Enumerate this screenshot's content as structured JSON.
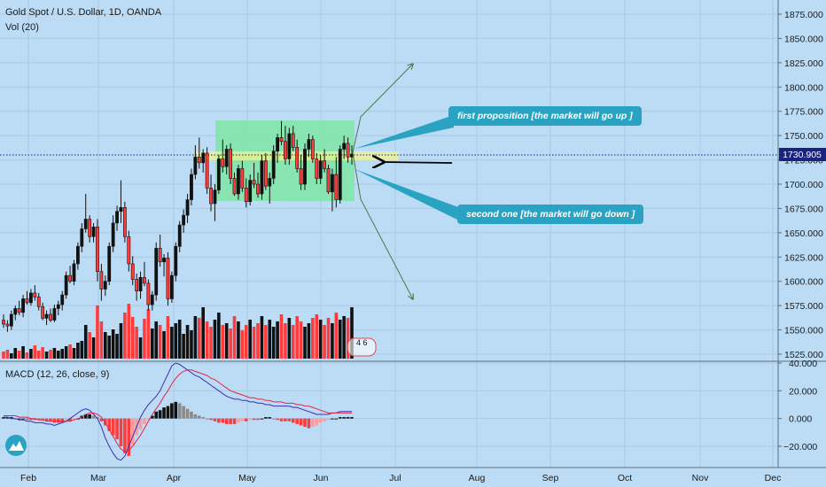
{
  "header": {
    "symbol_title": "Gold Spot / U.S. Dollar, 1D, OANDA",
    "volume_label": "Vol (20)",
    "macd_label": "MACD (12, 26, close, 9)",
    "logo_icon": "tradingview-logo-icon"
  },
  "price_axis": {
    "ticks": [
      "1875.000",
      "1850.000",
      "1825.000",
      "1800.000",
      "1775.000",
      "1750.000",
      "1725.000",
      "1700.000",
      "1675.000",
      "1650.000",
      "1625.000",
      "1600.000",
      "1575.000",
      "1550.000",
      "1525.000"
    ],
    "current_price": "1730.905",
    "current_price_color": "#1a237e"
  },
  "macd_axis": {
    "ticks": [
      "40.000",
      "20.000",
      "0.000",
      "−20.000"
    ]
  },
  "time_axis": {
    "labels": [
      "Feb",
      "Mar",
      "Apr",
      "May",
      "Jun",
      "Jul",
      "Aug",
      "Sep",
      "Oct",
      "Nov",
      "Dec"
    ]
  },
  "annotations": {
    "up_label": "first proposition [the market will go up ]",
    "down_label": "second one [the market will go down ]",
    "volume_overlay_value": "4 6",
    "callout_color": "#2aa3c3",
    "range_box_color": "#7fe6a6"
  },
  "chart_data": {
    "type": "candlestick",
    "ylim": [
      1520,
      1885
    ],
    "macd_ylim": [
      -32,
      42
    ],
    "up_color": "#111111",
    "down_color": "#ff3b3b",
    "candles": [
      [
        1560,
        1566,
        1552,
        1556
      ],
      [
        1556,
        1560,
        1548,
        1554
      ],
      [
        1554,
        1570,
        1550,
        1566
      ],
      [
        1566,
        1575,
        1560,
        1572
      ],
      [
        1572,
        1580,
        1565,
        1568
      ],
      [
        1568,
        1586,
        1563,
        1582
      ],
      [
        1582,
        1590,
        1576,
        1578
      ],
      [
        1578,
        1592,
        1575,
        1588
      ],
      [
        1588,
        1596,
        1580,
        1584
      ],
      [
        1584,
        1588,
        1570,
        1574
      ],
      [
        1574,
        1578,
        1560,
        1562
      ],
      [
        1562,
        1570,
        1555,
        1566
      ],
      [
        1566,
        1572,
        1558,
        1560
      ],
      [
        1560,
        1576,
        1558,
        1572
      ],
      [
        1572,
        1580,
        1565,
        1576
      ],
      [
        1576,
        1590,
        1570,
        1586
      ],
      [
        1586,
        1610,
        1582,
        1606
      ],
      [
        1606,
        1616,
        1598,
        1600
      ],
      [
        1600,
        1622,
        1596,
        1618
      ],
      [
        1618,
        1640,
        1612,
        1636
      ],
      [
        1636,
        1660,
        1630,
        1654
      ],
      [
        1654,
        1690,
        1650,
        1664
      ],
      [
        1664,
        1668,
        1640,
        1646
      ],
      [
        1646,
        1660,
        1640,
        1656
      ],
      [
        1656,
        1664,
        1600,
        1610
      ],
      [
        1610,
        1618,
        1580,
        1592
      ],
      [
        1592,
        1606,
        1585,
        1600
      ],
      [
        1600,
        1640,
        1596,
        1636
      ],
      [
        1636,
        1668,
        1630,
        1660
      ],
      [
        1660,
        1678,
        1652,
        1672
      ],
      [
        1672,
        1704,
        1660,
        1676
      ],
      [
        1676,
        1682,
        1640,
        1646
      ],
      [
        1646,
        1652,
        1610,
        1618
      ],
      [
        1618,
        1626,
        1596,
        1602
      ],
      [
        1602,
        1608,
        1580,
        1590
      ],
      [
        1590,
        1610,
        1582,
        1604
      ],
      [
        1604,
        1620,
        1595,
        1598
      ],
      [
        1598,
        1602,
        1570,
        1576
      ],
      [
        1576,
        1590,
        1570,
        1586
      ],
      [
        1586,
        1640,
        1580,
        1634
      ],
      [
        1634,
        1648,
        1615,
        1620
      ],
      [
        1620,
        1628,
        1605,
        1624
      ],
      [
        1624,
        1630,
        1575,
        1582
      ],
      [
        1582,
        1610,
        1578,
        1606
      ],
      [
        1606,
        1640,
        1600,
        1636
      ],
      [
        1636,
        1662,
        1630,
        1658
      ],
      [
        1658,
        1674,
        1650,
        1668
      ],
      [
        1668,
        1690,
        1660,
        1684
      ],
      [
        1684,
        1716,
        1678,
        1710
      ],
      [
        1710,
        1740,
        1705,
        1728
      ],
      [
        1728,
        1748,
        1716,
        1722
      ],
      [
        1722,
        1736,
        1712,
        1732
      ],
      [
        1732,
        1738,
        1690,
        1696
      ],
      [
        1696,
        1710,
        1672,
        1680
      ],
      [
        1680,
        1700,
        1662,
        1694
      ],
      [
        1694,
        1730,
        1690,
        1726
      ],
      [
        1726,
        1746,
        1712,
        1718
      ],
      [
        1718,
        1740,
        1710,
        1736
      ],
      [
        1736,
        1742,
        1700,
        1706
      ],
      [
        1706,
        1712,
        1688,
        1690
      ],
      [
        1690,
        1720,
        1684,
        1716
      ],
      [
        1716,
        1724,
        1692,
        1696
      ],
      [
        1696,
        1706,
        1676,
        1682
      ],
      [
        1682,
        1710,
        1678,
        1704
      ],
      [
        1704,
        1722,
        1696,
        1700
      ],
      [
        1700,
        1712,
        1686,
        1690
      ],
      [
        1690,
        1730,
        1684,
        1724
      ],
      [
        1724,
        1732,
        1694,
        1698
      ],
      [
        1698,
        1712,
        1680,
        1706
      ],
      [
        1706,
        1740,
        1700,
        1734
      ],
      [
        1734,
        1752,
        1722,
        1748
      ],
      [
        1748,
        1765,
        1740,
        1744
      ],
      [
        1744,
        1760,
        1720,
        1726
      ],
      [
        1726,
        1758,
        1720,
        1752
      ],
      [
        1752,
        1760,
        1734,
        1738
      ],
      [
        1738,
        1746,
        1712,
        1716
      ],
      [
        1716,
        1730,
        1694,
        1700
      ],
      [
        1700,
        1742,
        1694,
        1736
      ],
      [
        1736,
        1752,
        1728,
        1746
      ],
      [
        1746,
        1750,
        1722,
        1726
      ],
      [
        1726,
        1732,
        1700,
        1706
      ],
      [
        1706,
        1730,
        1700,
        1724
      ],
      [
        1724,
        1736,
        1712,
        1716
      ],
      [
        1716,
        1720,
        1690,
        1692
      ],
      [
        1692,
        1716,
        1672,
        1710
      ],
      [
        1710,
        1728,
        1676,
        1684
      ],
      [
        1684,
        1740,
        1680,
        1736
      ],
      [
        1736,
        1750,
        1726,
        1742
      ],
      [
        1742,
        1748,
        1722,
        1728
      ],
      [
        1728,
        1740,
        1720,
        1731
      ]
    ],
    "volume_scale_max": 100,
    "volumes": [
      8,
      10,
      6,
      12,
      9,
      14,
      7,
      11,
      15,
      9,
      13,
      8,
      10,
      12,
      9,
      11,
      14,
      16,
      12,
      18,
      20,
      38,
      30,
      24,
      60,
      42,
      30,
      26,
      33,
      28,
      40,
      52,
      62,
      47,
      36,
      24,
      45,
      56,
      34,
      42,
      38,
      31,
      48,
      36,
      40,
      44,
      28,
      38,
      32,
      48,
      46,
      58,
      42,
      36,
      44,
      52,
      38,
      40,
      34,
      48,
      42,
      32,
      38,
      44,
      36,
      40,
      48,
      38,
      44,
      36,
      42,
      50,
      40,
      46,
      38,
      48,
      42,
      36,
      40,
      46,
      50,
      44,
      38,
      46,
      40,
      52,
      44,
      48,
      46,
      58
    ],
    "macd_histogram": [
      1,
      1,
      1,
      0,
      0,
      0,
      -1,
      -1,
      -1,
      -1,
      -1,
      -2,
      -2,
      -3,
      -3,
      -3,
      -2,
      -2,
      -1,
      0,
      2,
      3,
      3,
      2,
      1,
      -2,
      -5,
      -9,
      -12,
      -15,
      -20,
      -25,
      -27,
      -19,
      -12,
      -8,
      -4,
      -1,
      2,
      5,
      6,
      8,
      9,
      11,
      12,
      11,
      9,
      7,
      5,
      3,
      2,
      1,
      0,
      -1,
      -2,
      -3,
      -3,
      -4,
      -4,
      -4,
      -3,
      -2,
      -2,
      -1,
      -1,
      -1,
      0,
      1,
      1,
      0,
      -1,
      -2,
      -2,
      -2,
      -3,
      -4,
      -5,
      -6,
      -7,
      -6,
      -5,
      -3,
      -2,
      -1,
      0,
      0,
      1,
      1,
      1,
      1
    ],
    "macd_line": [
      1,
      1,
      0,
      0,
      -1,
      -1,
      -2,
      -2,
      -3,
      -3,
      -3,
      -4,
      -4,
      -5,
      -4,
      -3,
      -2,
      0,
      2,
      4,
      6,
      7,
      6,
      3,
      0,
      -6,
      -14,
      -20,
      -25,
      -29,
      -30,
      -27,
      -20,
      -13,
      -6,
      1,
      6,
      10,
      13,
      16,
      20,
      26,
      32,
      38,
      40,
      39,
      37,
      35,
      33,
      31,
      30,
      28,
      26,
      24,
      22,
      20,
      18,
      16,
      15,
      14,
      14,
      13,
      13,
      12,
      12,
      11,
      11,
      10,
      10,
      9,
      9,
      9,
      9,
      9,
      8,
      8,
      7,
      6,
      5,
      4,
      3,
      3,
      3,
      3,
      4,
      4,
      5,
      5,
      5,
      5
    ],
    "signal_line": [
      2,
      2,
      2,
      2,
      1,
      1,
      1,
      0,
      0,
      -1,
      -1,
      -2,
      -2,
      -2,
      -2,
      -2,
      -2,
      -2,
      -1,
      0,
      1,
      3,
      4,
      4,
      3,
      1,
      -3,
      -8,
      -13,
      -18,
      -22,
      -24,
      -23,
      -20,
      -16,
      -12,
      -7,
      -2,
      3,
      7,
      11,
      16,
      20,
      25,
      29,
      32,
      34,
      35,
      35,
      34,
      33,
      32,
      31,
      29,
      28,
      26,
      24,
      22,
      20,
      19,
      18,
      17,
      16,
      15,
      15,
      14,
      14,
      13,
      13,
      12,
      12,
      12,
      11,
      11,
      11,
      10,
      10,
      9,
      9,
      8,
      7,
      6,
      5,
      4,
      4,
      4,
      4,
      4,
      4,
      4
    ]
  }
}
